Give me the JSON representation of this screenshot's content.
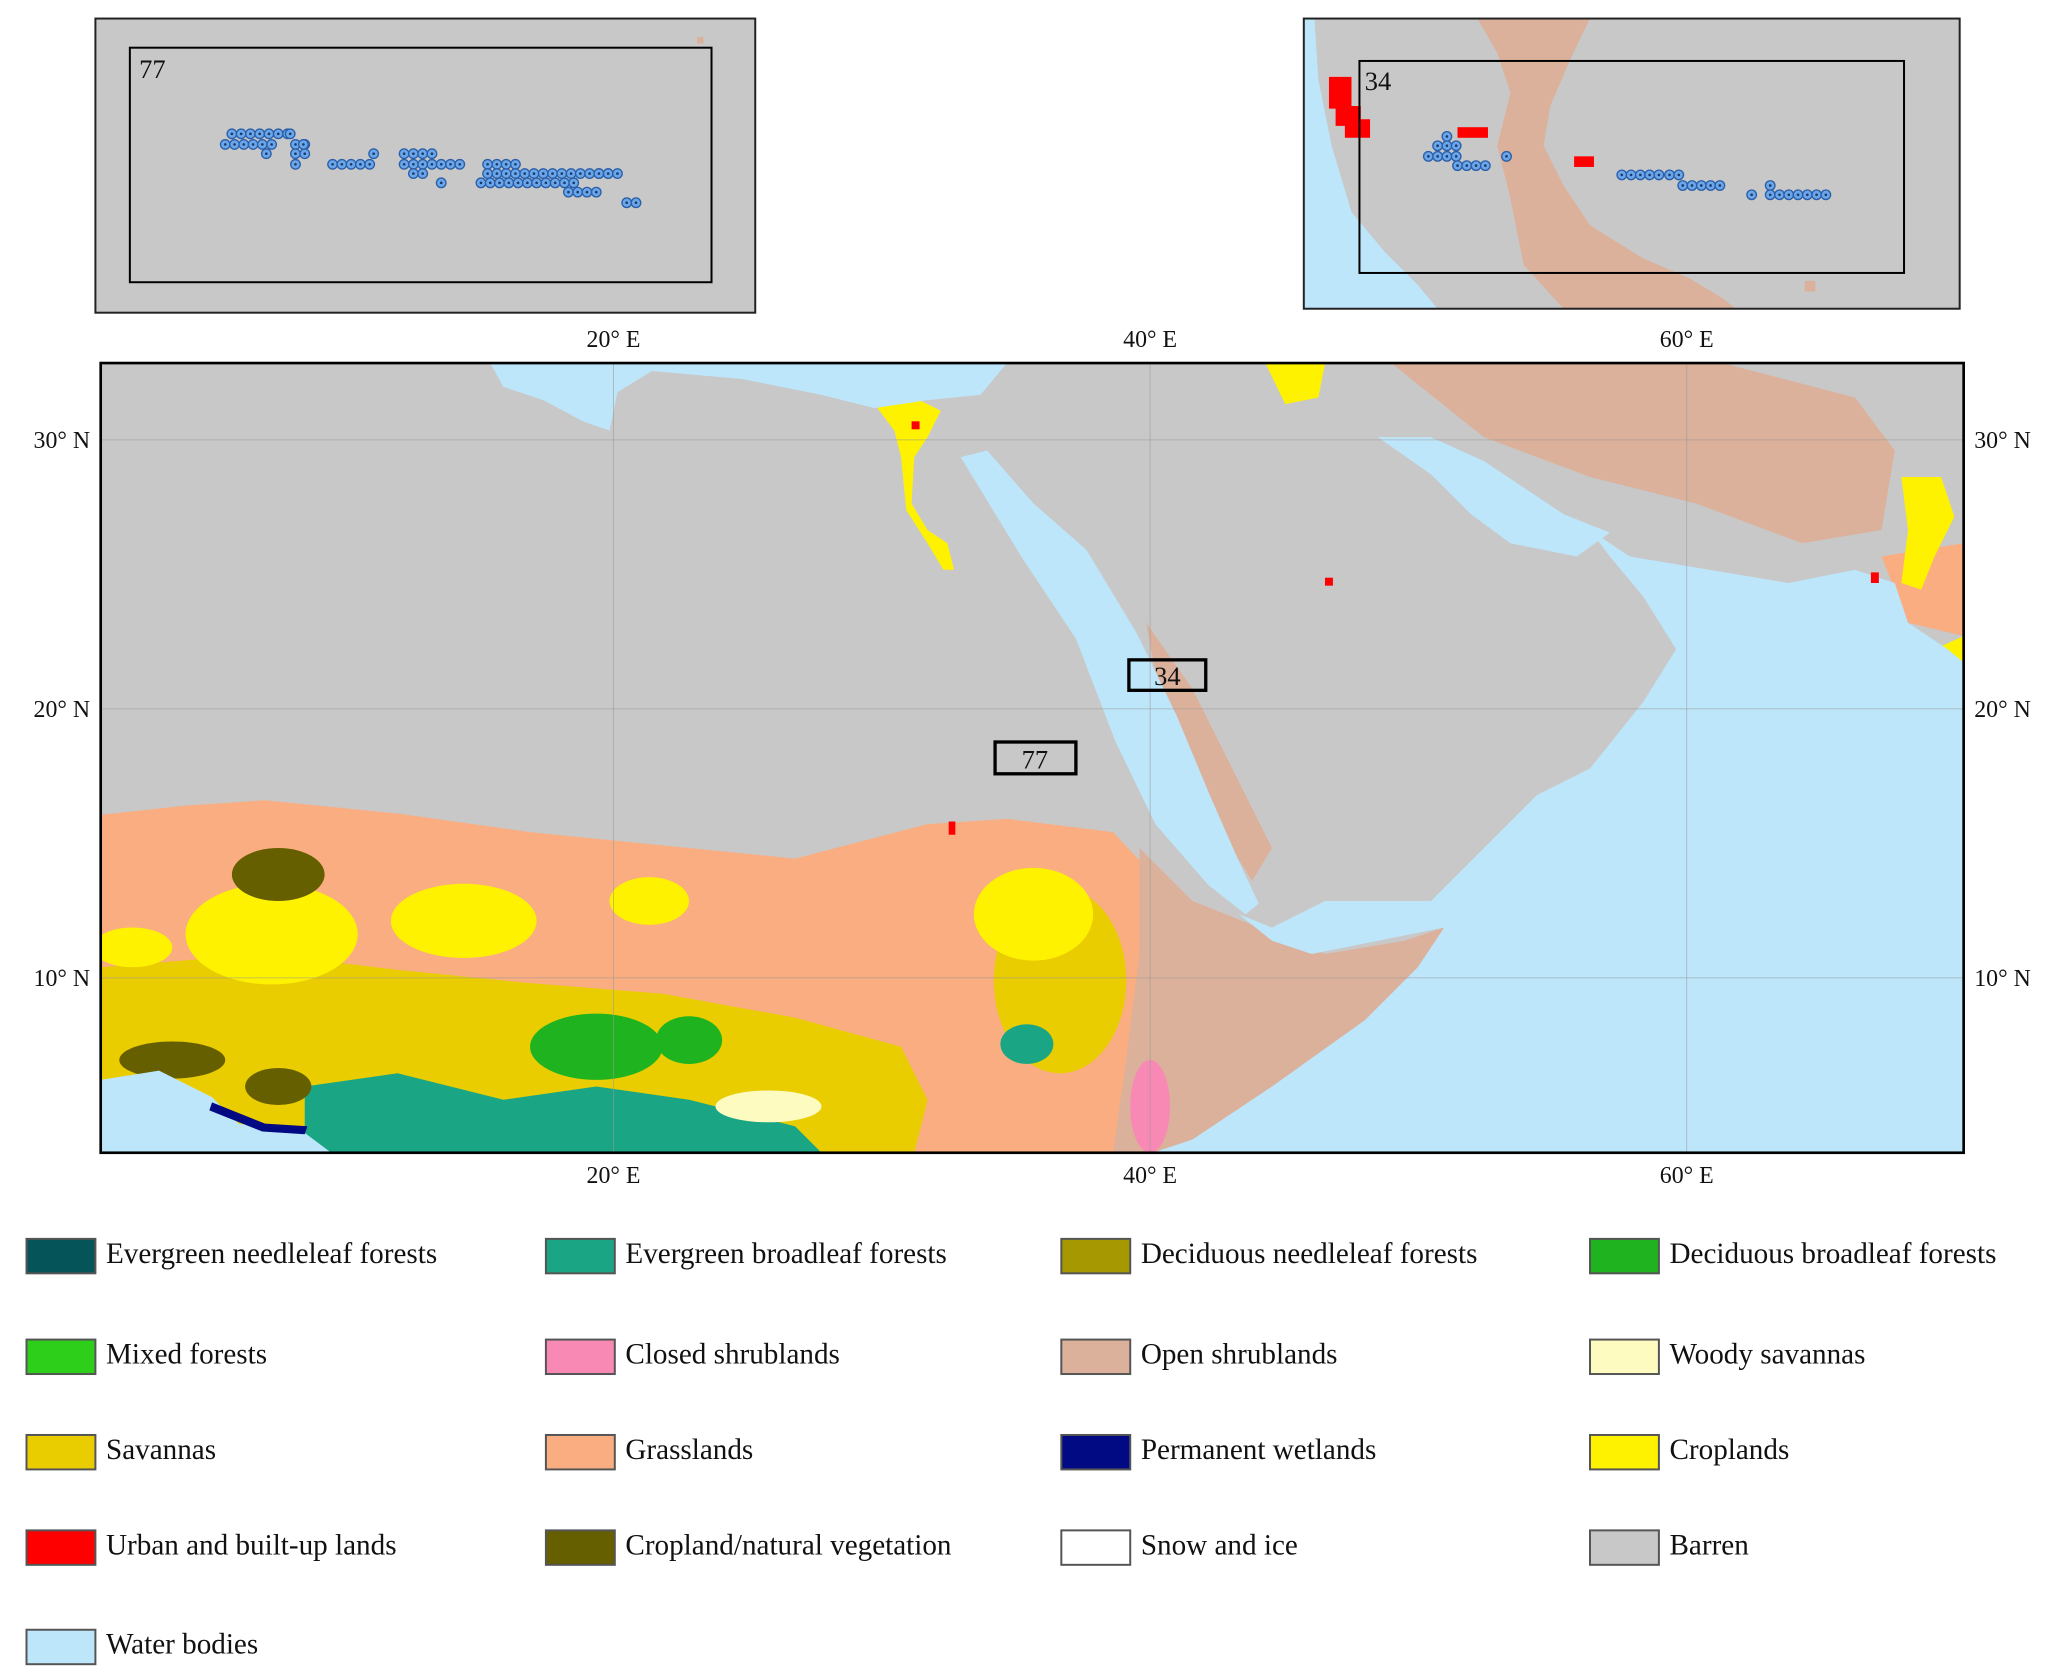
{
  "insets": [
    {
      "label": "77"
    },
    {
      "label": "34"
    }
  ],
  "map": {
    "lon_ticks": [
      {
        "value": 20,
        "label": "20° E"
      },
      {
        "value": 40,
        "label": "40° E"
      },
      {
        "value": 60,
        "label": "60° E"
      }
    ],
    "lat_ticks": [
      {
        "value": 30,
        "label": "30° N"
      },
      {
        "value": 20,
        "label": "20° N"
      },
      {
        "value": 10,
        "label": "10° N"
      }
    ],
    "boxes": [
      {
        "label": "34"
      },
      {
        "label": "77"
      }
    ]
  },
  "legend": [
    {
      "name": "Evergreen needleleaf forests",
      "color": "#05545a"
    },
    {
      "name": "Evergreen broadleaf forests",
      "color": "#1aa685"
    },
    {
      "name": "Deciduous needleleaf forests",
      "color": "#a59800"
    },
    {
      "name": "Deciduous broadleaf forests",
      "color": "#1fb41f"
    },
    {
      "name": "Mixed forests",
      "color": "#2dcf1a"
    },
    {
      "name": "Closed shrublands",
      "color": "#f889b5"
    },
    {
      "name": "Open shrublands",
      "color": "#dbb19b"
    },
    {
      "name": "Woody savannas",
      "color": "#fefbc0"
    },
    {
      "name": "Savannas",
      "color": "#e9cd00"
    },
    {
      "name": "Grasslands",
      "color": "#f9ad81"
    },
    {
      "name": "Permanent wetlands",
      "color": "#020a83"
    },
    {
      "name": "Croplands",
      "color": "#fff200"
    },
    {
      "name": "Urban and built-up lands",
      "color": "#fe0000"
    },
    {
      "name": "Cropland/natural vegetation",
      "color": "#665f00"
    },
    {
      "name": "Snow and ice",
      "color": "#ffffff"
    },
    {
      "name": "Barren",
      "color": "#c8c8c8"
    },
    {
      "name": "Water bodies",
      "color": "#bde6fa"
    }
  ]
}
